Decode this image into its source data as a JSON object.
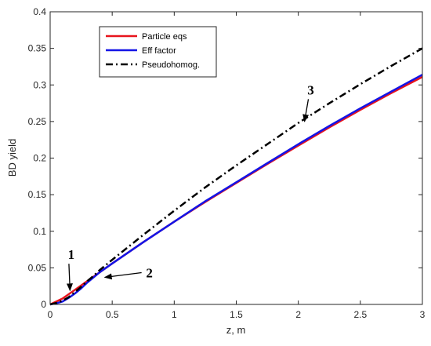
{
  "chart_data": {
    "type": "line",
    "title": "",
    "xlabel": "z,  m",
    "ylabel": "BD yield",
    "xlim": [
      0,
      3
    ],
    "ylim": [
      0,
      0.4
    ],
    "xticks": [
      0,
      0.5,
      1,
      1.5,
      2,
      2.5,
      3
    ],
    "xtick_labels": [
      "0",
      "0.5",
      "1",
      "1.5",
      "2",
      "2.5",
      "3"
    ],
    "yticks": [
      0,
      0.05,
      0.1,
      0.15,
      0.2,
      0.25,
      0.3,
      0.35,
      0.4
    ],
    "ytick_labels": [
      "0",
      "0.05",
      "0.1",
      "0.15",
      "0.2",
      "0.25",
      "0.3",
      "0.35",
      "0.4"
    ],
    "grid": false,
    "legend_position": "top-left",
    "series": [
      {
        "name": "Particle eqs",
        "color": "#e8141c",
        "style": "solid",
        "x": [
          0,
          0.1,
          0.2,
          0.3,
          0.4,
          0.5,
          0.75,
          1.0,
          1.25,
          1.5,
          1.75,
          2.0,
          2.25,
          2.5,
          2.75,
          3.0
        ],
        "y": [
          0,
          0.008,
          0.02,
          0.032,
          0.044,
          0.056,
          0.085,
          0.113,
          0.14,
          0.166,
          0.192,
          0.217,
          0.242,
          0.266,
          0.289,
          0.311
        ]
      },
      {
        "name": "Eff factor",
        "color": "#1414e6",
        "style": "solid",
        "x": [
          0,
          0.05,
          0.1,
          0.15,
          0.2,
          0.25,
          0.3,
          0.35,
          0.4,
          0.5,
          0.75,
          1.0,
          1.25,
          1.5,
          1.75,
          2.0,
          2.25,
          2.5,
          2.75,
          3.0
        ],
        "y": [
          0,
          0.0015,
          0.004,
          0.009,
          0.015,
          0.022,
          0.03,
          0.037,
          0.044,
          0.056,
          0.085,
          0.113,
          0.141,
          0.167,
          0.193,
          0.219,
          0.244,
          0.268,
          0.291,
          0.314
        ]
      },
      {
        "name": "Pseudohomog.",
        "color": "#000000",
        "style": "dashdot",
        "x": [
          0,
          0.05,
          0.1,
          0.15,
          0.2,
          0.25,
          0.3,
          0.35,
          0.4,
          0.5,
          0.75,
          1.0,
          1.25,
          1.5,
          1.75,
          2.0,
          2.25,
          2.5,
          2.75,
          3.0
        ],
        "y": [
          0,
          0.002,
          0.005,
          0.01,
          0.017,
          0.024,
          0.032,
          0.039,
          0.047,
          0.061,
          0.095,
          0.128,
          0.16,
          0.19,
          0.219,
          0.248,
          0.275,
          0.301,
          0.326,
          0.35
        ]
      }
    ],
    "annotations": [
      {
        "text": "1",
        "label_at": [
          0.17,
          0.062
        ],
        "arrow_to": [
          0.16,
          0.019
        ]
      },
      {
        "text": "2",
        "label_at": [
          0.8,
          0.037
        ],
        "arrow_to": [
          0.44,
          0.037
        ]
      },
      {
        "text": "3",
        "label_at": [
          2.1,
          0.287
        ],
        "arrow_to": [
          2.05,
          0.25
        ]
      }
    ]
  }
}
